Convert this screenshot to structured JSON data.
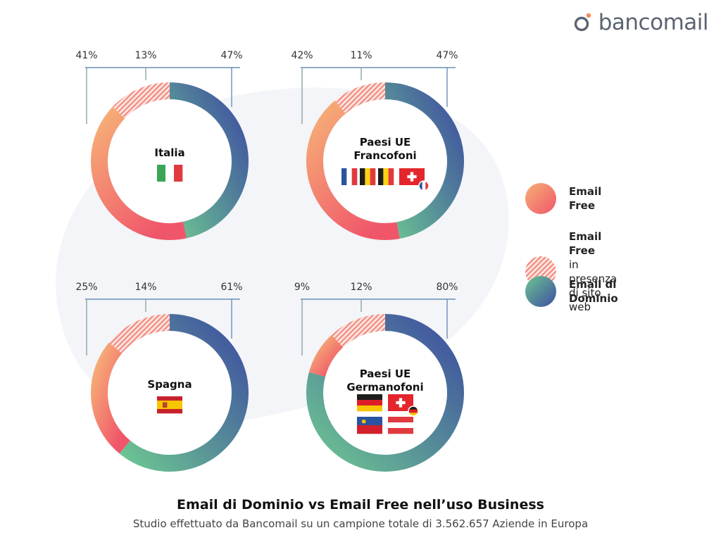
{
  "brand": {
    "name": "bancomail",
    "logo_icon": "bancomail-logo-icon"
  },
  "footer": {
    "title": "Email di Dominio vs Email Free nell’uso Business",
    "subtitle": "Studio effettuato da Bancomail su un campione totale di 3.562.657 Aziende in Europa"
  },
  "legend": [
    {
      "key": "free",
      "label": "Email Free",
      "sublabel": ""
    },
    {
      "key": "free_web",
      "label": "Email Free",
      "sublabel": "in presenza di sito web"
    },
    {
      "key": "domain",
      "label": "Email di Dominio",
      "sublabel": ""
    }
  ],
  "colors": {
    "free_gradient": [
      "#f6b077",
      "#f0566a"
    ],
    "free_web_stripe": "#f28a80",
    "domain_gradient": [
      "#6cc592",
      "#3e4ea0"
    ],
    "bracket_line": "#6b8fb8",
    "blob": "#f3f5f8"
  },
  "chart_data": [
    {
      "type": "donut",
      "title": "Italia",
      "flags": [
        "italy-flag"
      ],
      "series": [
        {
          "key": "free",
          "value": 41,
          "label": "41%"
        },
        {
          "key": "free_web",
          "value": 13,
          "label": "13%"
        },
        {
          "key": "domain",
          "value": 47,
          "label": "47%"
        }
      ]
    },
    {
      "type": "donut",
      "title": "Paesi UE Francofoni",
      "title_lines": [
        "Paesi UE",
        "Francofoni"
      ],
      "flags": [
        "france-flag",
        "belgium-flag",
        "luxembourg-flag",
        "switzerland-flag"
      ],
      "series": [
        {
          "key": "free",
          "value": 42,
          "label": "42%"
        },
        {
          "key": "free_web",
          "value": 11,
          "label": "11%"
        },
        {
          "key": "domain",
          "value": 47,
          "label": "47%"
        }
      ]
    },
    {
      "type": "donut",
      "title": "Spagna",
      "flags": [
        "spain-flag"
      ],
      "series": [
        {
          "key": "free",
          "value": 25,
          "label": "25%"
        },
        {
          "key": "free_web",
          "value": 14,
          "label": "14%"
        },
        {
          "key": "domain",
          "value": 61,
          "label": "61%"
        }
      ]
    },
    {
      "type": "donut",
      "title": "Paesi UE Germanofoni",
      "title_lines": [
        "Paesi UE",
        "Germanofoni"
      ],
      "flags": [
        "germany-flag",
        "switzerland-flag",
        "liechtenstein-flag",
        "austria-flag"
      ],
      "series": [
        {
          "key": "free",
          "value": 9,
          "label": "9%"
        },
        {
          "key": "free_web",
          "value": 12,
          "label": "12%"
        },
        {
          "key": "domain",
          "value": 80,
          "label": "80%"
        }
      ]
    }
  ]
}
